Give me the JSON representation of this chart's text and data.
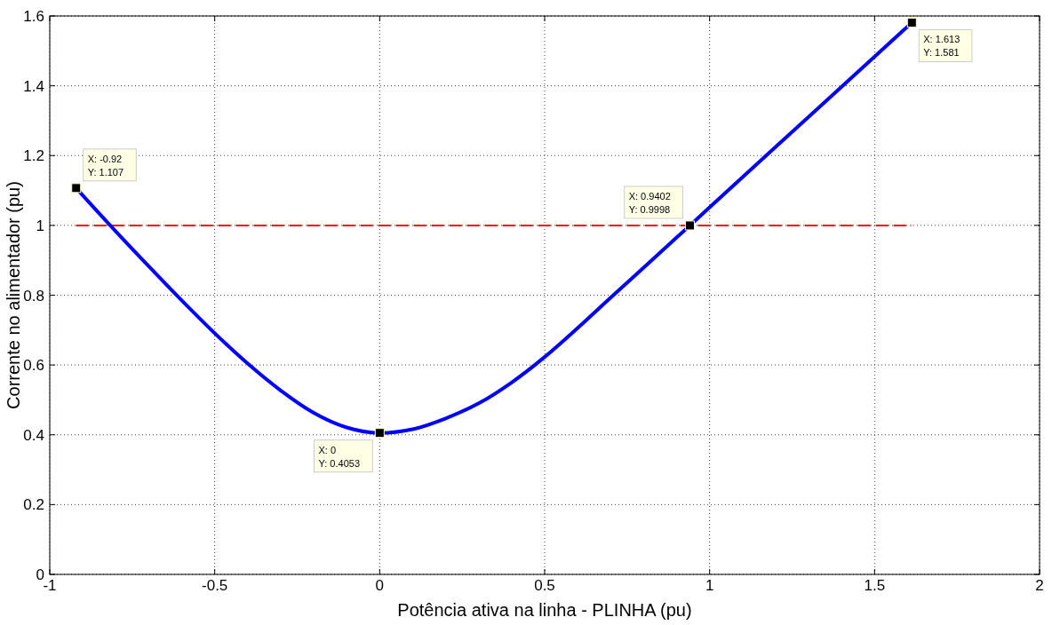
{
  "chart_data": {
    "type": "line",
    "xlabel": "Potência ativa na linha - PLINHA (pu)",
    "ylabel": "Corrente no alimentador (pu)",
    "x": [
      -0.92,
      -0.8,
      -0.7,
      -0.6,
      -0.5,
      -0.4,
      -0.3,
      -0.2,
      -0.1,
      0,
      0.1,
      0.2,
      0.3,
      0.4,
      0.5,
      0.6,
      0.7,
      0.8,
      0.9402,
      1.0,
      1.2,
      1.4,
      1.613
    ],
    "series": [
      {
        "color": "#0000ff",
        "values": [
          1.107,
          0.983,
          0.883,
          0.785,
          0.691,
          0.604,
          0.527,
          0.463,
          0.421,
          0.4053,
          0.416,
          0.447,
          0.49,
          0.55,
          0.623,
          0.706,
          0.793,
          0.879,
          0.9998,
          1.052,
          1.225,
          1.397,
          1.581
        ]
      }
    ],
    "ref_lines": [
      {
        "axis": "y",
        "value": 1,
        "color": "#ff0000",
        "line_style": "dashed"
      }
    ],
    "annotations": [
      {
        "text": "X: -0.92\nY: 1.107",
        "x": -0.92,
        "y": 1.107
      },
      {
        "text": "X: 0\nY: 0.4053",
        "x": 0,
        "y": 0.4053
      },
      {
        "text": "X: 0.9402\nY: 0.9998",
        "x": 0.9402,
        "y": 0.9998
      },
      {
        "text": "X: 1.613\nY: 1.581",
        "x": 1.613,
        "y": 1.581
      }
    ],
    "xlim": [
      -1,
      2
    ],
    "ylim": [
      0,
      1.6
    ],
    "xticks": [
      -1,
      -0.5,
      0,
      0.5,
      1,
      1.5,
      2
    ],
    "yticks": [
      0,
      0.2,
      0.4,
      0.6,
      0.8,
      1,
      1.2,
      1.4,
      1.6
    ],
    "grid": true,
    "marker": "none",
    "line_style": "solid"
  }
}
